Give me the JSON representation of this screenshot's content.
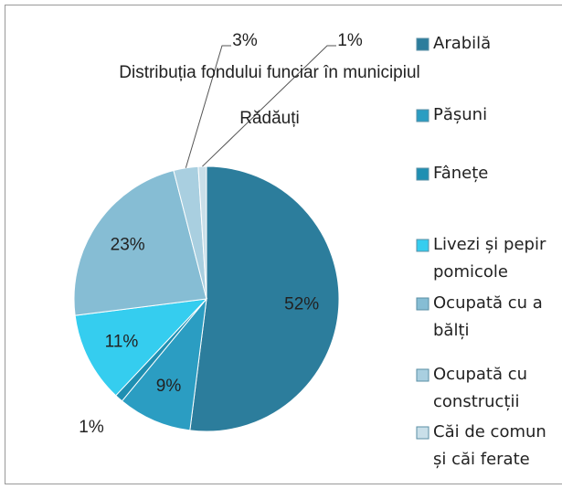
{
  "chart_data": {
    "type": "pie",
    "title": "Distribuția fondului funciar în municipiul\nRădăuți",
    "series": [
      {
        "name": "Arabilă",
        "color": "#2c7d9c",
        "values": [
          52
        ],
        "value_labels": [
          "52%"
        ]
      },
      {
        "name": "Pășuni",
        "color": "#2b9dc2",
        "values": [
          9
        ],
        "value_labels": [
          "9%"
        ]
      },
      {
        "name": "Fânețe",
        "color": "#1f8fb2",
        "values": [
          1
        ],
        "value_labels": [
          "1%"
        ]
      },
      {
        "name": "Livezi și pepir\npomicole",
        "color": "#35cdef",
        "values": [
          11
        ],
        "value_labels": [
          "11%"
        ]
      },
      {
        "name": "Ocupată cu a\nbălți",
        "color": "#86bdd4",
        "values": [
          23
        ],
        "value_labels": [
          "23%"
        ]
      },
      {
        "name": "Ocupată cu\nconstrucții",
        "color": "#a9cfe0",
        "values": [
          3
        ],
        "value_labels": [
          "3%"
        ]
      },
      {
        "name": "Căi de comun\nși căi ferate",
        "color": "#c9dfe9",
        "values": [
          1
        ],
        "value_labels": [
          "1%"
        ]
      }
    ]
  }
}
